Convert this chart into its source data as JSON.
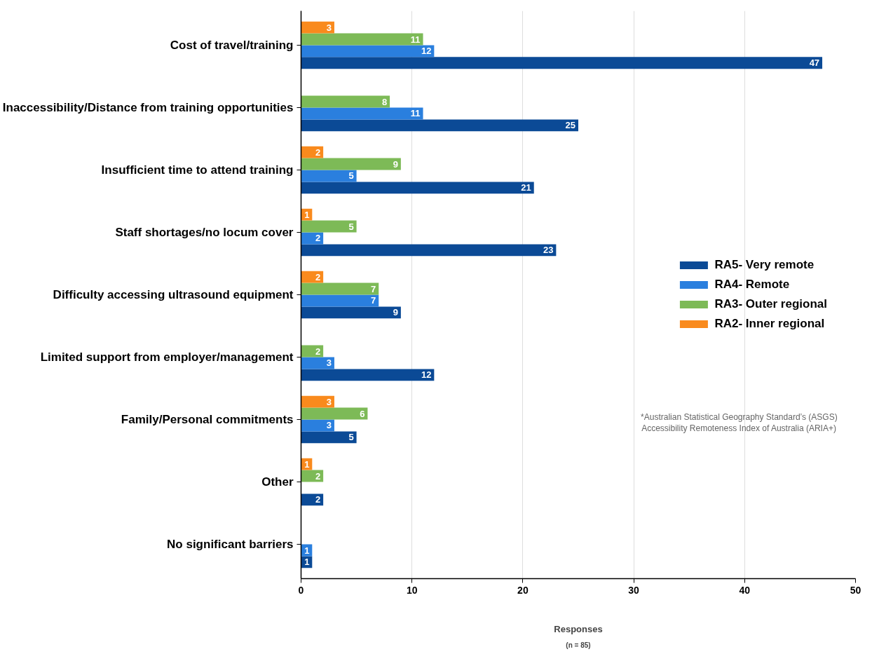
{
  "chart_data": {
    "type": "bar",
    "orientation": "horizontal",
    "categories": [
      "Cost of travel/training",
      "Inaccessibility/Distance from training opportunities",
      "Insufficient time to attend training",
      "Staff shortages/no locum cover",
      "Difficulty accessing ultrasound equipment",
      "Limited support from employer/management",
      "Family/Personal commitments",
      "Other",
      "No significant barriers"
    ],
    "series": [
      {
        "name": "RA5- Very remote",
        "color": "#0b4a96",
        "values": [
          47,
          25,
          21,
          23,
          9,
          12,
          5,
          2,
          1
        ]
      },
      {
        "name": "RA4- Remote",
        "color": "#2a7fde",
        "values": [
          12,
          11,
          5,
          2,
          7,
          3,
          3,
          null,
          1
        ]
      },
      {
        "name": "RA3- Outer regional",
        "color": "#7dba57",
        "values": [
          11,
          8,
          9,
          5,
          7,
          2,
          6,
          2,
          null
        ]
      },
      {
        "name": "RA2- Inner regional",
        "color": "#f98a1d",
        "values": [
          3,
          null,
          2,
          1,
          2,
          null,
          3,
          1,
          null
        ]
      }
    ],
    "xlabel": "Responses",
    "xlim": [
      0,
      50
    ],
    "xticks": [
      0,
      10,
      20,
      30,
      40,
      50
    ],
    "grid": "x",
    "legend": "right",
    "data_labels": true,
    "annotations": [
      "(n = 85)",
      "*Australian Statistical Geography Standard’s (ASGS)\nAccessibility Remoteness Index of Australia (ARIA+)"
    ]
  }
}
